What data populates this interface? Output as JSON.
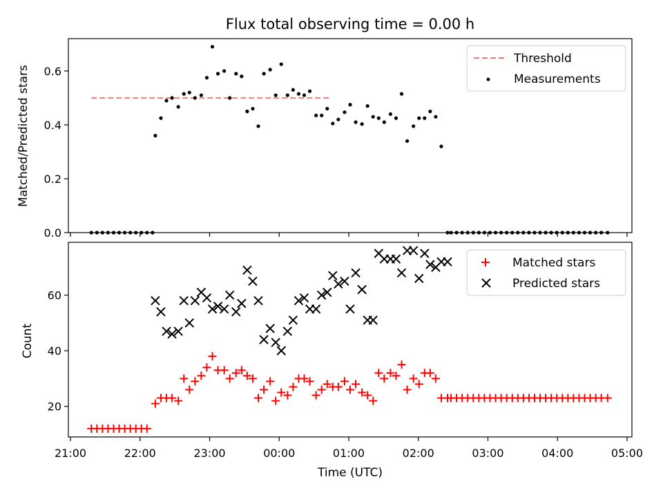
{
  "title": "Flux total observing time = 0.00 h",
  "x_axis": {
    "label": "Time (UTC)",
    "tick_labels": [
      "21:00",
      "22:00",
      "23:00",
      "00:00",
      "01:00",
      "02:00",
      "03:00",
      "04:00",
      "05:00"
    ]
  },
  "chart_data": [
    {
      "type": "scatter",
      "ylabel": "Matched/Predicted stars",
      "ylim": [
        0,
        0.72
      ],
      "yticks": [
        "0.0",
        "0.2",
        "0.4",
        "0.6"
      ],
      "xlim_hours": [
        20.97,
        29.07
      ],
      "legend_position": "top-right",
      "legend": [
        "Threshold",
        "Measurements"
      ],
      "threshold": {
        "name": "Threshold",
        "y": 0.5,
        "x_range_hours": [
          21.3,
          24.72
        ],
        "color": "#ff7777",
        "style": "dashed"
      },
      "series": [
        {
          "name": "Measurements",
          "marker": "dot",
          "color": "#000000",
          "x_hours": [
            21.3,
            21.38,
            21.46,
            21.54,
            21.62,
            21.7,
            21.78,
            21.86,
            21.94,
            22.02,
            22.1,
            22.18,
            22.22,
            22.3,
            22.38,
            22.46,
            22.55,
            22.63,
            22.71,
            22.79,
            22.88,
            22.96,
            23.04,
            23.12,
            23.21,
            23.29,
            23.38,
            23.46,
            23.54,
            23.62,
            23.7,
            23.78,
            23.87,
            23.95,
            24.03,
            24.12,
            24.2,
            24.28,
            24.36,
            24.44,
            24.53,
            24.61,
            24.69,
            24.77,
            24.85,
            24.94,
            25.02,
            25.1,
            25.19,
            25.27,
            25.35,
            25.43,
            25.51,
            25.6,
            25.68,
            25.76,
            25.84,
            25.93,
            26.01,
            26.09,
            26.17,
            26.25,
            26.33,
            26.42,
            26.47,
            26.55,
            26.63,
            26.71,
            26.79,
            26.87,
            26.95,
            27.03,
            27.11,
            27.19,
            27.27,
            27.35,
            27.43,
            27.51,
            27.59,
            27.67,
            27.75,
            27.83,
            27.91,
            27.99,
            28.07,
            28.15,
            28.23,
            28.31,
            28.39,
            28.47,
            28.55,
            28.63,
            28.72
          ],
          "y": [
            0,
            0,
            0,
            0,
            0,
            0,
            0,
            0,
            0,
            0,
            0,
            0,
            0.36,
            0.425,
            0.49,
            0.5,
            0.467,
            0.515,
            0.52,
            0.5,
            0.51,
            0.575,
            0.69,
            0.59,
            0.6,
            0.5,
            0.59,
            0.58,
            0.45,
            0.46,
            0.395,
            0.59,
            0.605,
            0.51,
            0.625,
            0.51,
            0.53,
            0.515,
            0.51,
            0.525,
            0.435,
            0.435,
            0.46,
            0.405,
            0.42,
            0.447,
            0.475,
            0.41,
            0.403,
            0.47,
            0.43,
            0.425,
            0.41,
            0.44,
            0.425,
            0.515,
            0.34,
            0.395,
            0.425,
            0.425,
            0.45,
            0.43,
            0.32,
            0,
            0,
            0,
            0,
            0,
            0,
            0,
            0,
            0,
            0,
            0,
            0,
            0,
            0,
            0,
            0,
            0,
            0,
            0,
            0,
            0,
            0,
            0,
            0,
            0,
            0,
            0,
            0,
            0,
            0
          ]
        }
      ]
    },
    {
      "type": "scatter",
      "ylabel": "Count",
      "ylim": [
        9,
        79
      ],
      "yticks": [
        "20",
        "40",
        "60"
      ],
      "xlim_hours": [
        20.97,
        29.07
      ],
      "legend_position": "top-right",
      "legend": [
        "Matched stars",
        "Predicted stars"
      ],
      "series": [
        {
          "name": "Matched stars",
          "marker": "plus",
          "color": "#ff0000",
          "x_hours": [
            21.3,
            21.38,
            21.46,
            21.54,
            21.62,
            21.7,
            21.78,
            21.86,
            21.94,
            22.02,
            22.1,
            22.22,
            22.3,
            22.38,
            22.46,
            22.55,
            22.63,
            22.71,
            22.79,
            22.88,
            22.96,
            23.04,
            23.12,
            23.21,
            23.29,
            23.38,
            23.46,
            23.54,
            23.62,
            23.7,
            23.78,
            23.87,
            23.95,
            24.03,
            24.12,
            24.2,
            24.28,
            24.36,
            24.44,
            24.53,
            24.61,
            24.69,
            24.77,
            24.85,
            24.94,
            25.02,
            25.1,
            25.19,
            25.27,
            25.35,
            25.43,
            25.51,
            25.6,
            25.68,
            25.76,
            25.84,
            25.93,
            26.01,
            26.09,
            26.17,
            26.25,
            26.33,
            26.42,
            26.47,
            26.55,
            26.63,
            26.71,
            26.79,
            26.87,
            26.95,
            27.03,
            27.11,
            27.19,
            27.27,
            27.35,
            27.43,
            27.51,
            27.59,
            27.67,
            27.75,
            27.83,
            27.91,
            27.99,
            28.07,
            28.15,
            28.23,
            28.31,
            28.39,
            28.47,
            28.55,
            28.63,
            28.72
          ],
          "y": [
            12,
            12,
            12,
            12,
            12,
            12,
            12,
            12,
            12,
            12,
            12,
            21,
            23,
            23,
            23,
            22,
            30,
            26,
            29,
            31,
            34,
            38,
            33,
            33,
            30,
            32,
            33,
            31,
            30,
            23,
            26,
            29,
            22,
            25,
            24,
            27,
            30,
            30,
            29,
            24,
            26,
            28,
            27,
            27,
            29,
            26,
            28,
            25,
            24,
            22,
            32,
            30,
            32,
            31,
            35,
            26,
            30,
            28,
            32,
            32,
            30,
            23,
            23,
            23,
            23,
            23,
            23,
            23,
            23,
            23,
            23,
            23,
            23,
            23,
            23,
            23,
            23,
            23,
            23,
            23,
            23,
            23,
            23,
            23,
            23,
            23,
            23,
            23,
            23,
            23,
            23,
            23
          ]
        },
        {
          "name": "Predicted stars",
          "marker": "x",
          "color": "#000000",
          "x_hours": [
            22.22,
            22.3,
            22.38,
            22.46,
            22.55,
            22.63,
            22.71,
            22.79,
            22.88,
            22.96,
            23.04,
            23.12,
            23.21,
            23.29,
            23.38,
            23.46,
            23.54,
            23.62,
            23.7,
            23.78,
            23.87,
            23.95,
            24.03,
            24.12,
            24.2,
            24.28,
            24.36,
            24.44,
            24.53,
            24.61,
            24.69,
            24.77,
            24.85,
            24.94,
            25.02,
            25.1,
            25.19,
            25.27,
            25.35,
            25.43,
            25.51,
            25.6,
            25.68,
            25.76,
            25.84,
            25.93,
            26.01,
            26.09,
            26.17,
            26.25,
            26.33,
            26.42
          ],
          "y": [
            58,
            54,
            47,
            46,
            47,
            58,
            50,
            58,
            61,
            59,
            55,
            56,
            55,
            60,
            54,
            57,
            69,
            65,
            58,
            44,
            48,
            43,
            40,
            47,
            51,
            58,
            59,
            55,
            55,
            60,
            61,
            67,
            64,
            65,
            55,
            68,
            62,
            51,
            51,
            75,
            73,
            73,
            73,
            68,
            76,
            76,
            66,
            75,
            71,
            70,
            72,
            72
          ]
        }
      ]
    }
  ]
}
